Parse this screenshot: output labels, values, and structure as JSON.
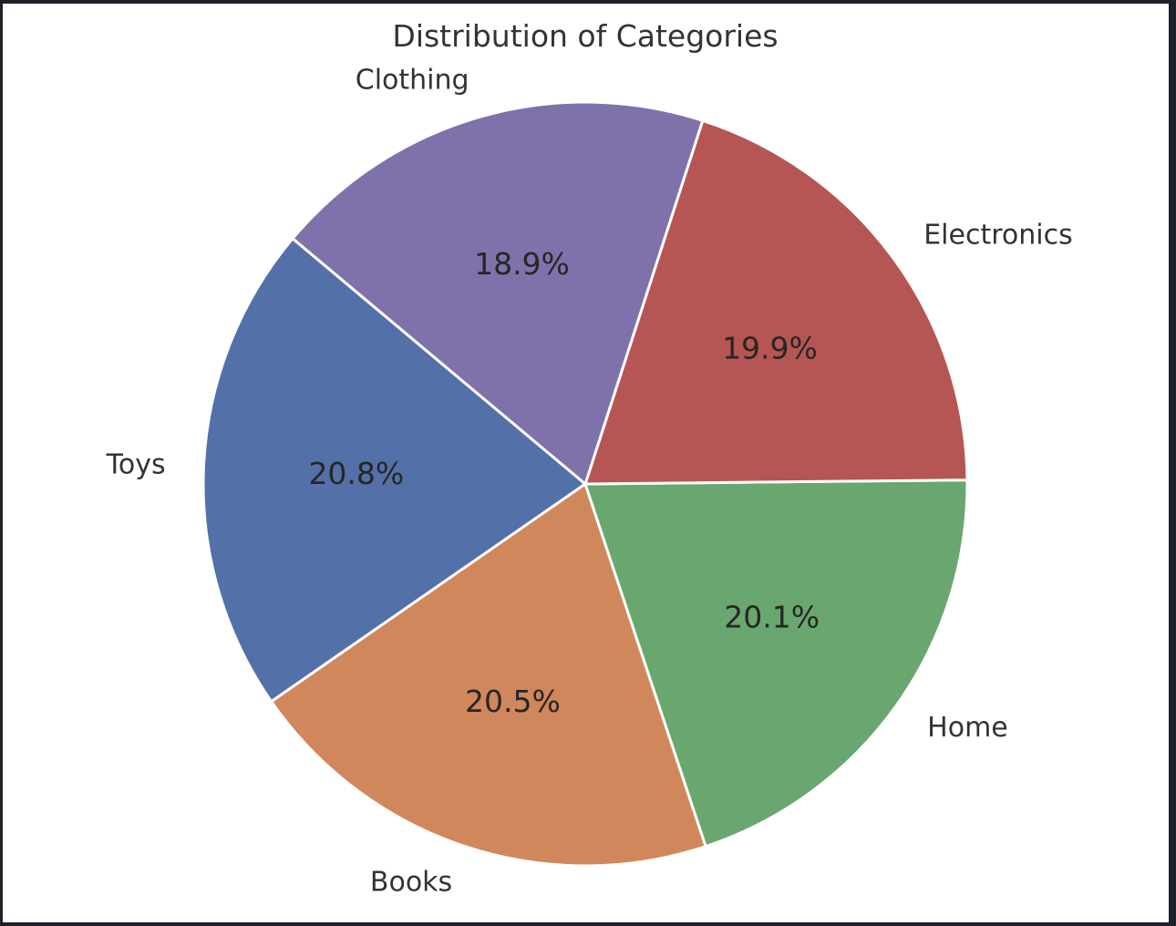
{
  "chart_data": {
    "type": "pie",
    "title": "Distribution of Categories",
    "start_angle_deg": 140,
    "direction": "counterclockwise",
    "slices": [
      {
        "label": "Toys",
        "percent": 20.8,
        "pct_label": "20.8%",
        "color": "#5470a9"
      },
      {
        "label": "Books",
        "percent": 20.5,
        "pct_label": "20.5%",
        "color": "#d1875c"
      },
      {
        "label": "Home",
        "percent": 20.1,
        "pct_label": "20.1%",
        "color": "#6aa66f"
      },
      {
        "label": "Electronics",
        "percent": 19.9,
        "pct_label": "19.9%",
        "color": "#b55654"
      },
      {
        "label": "Clothing",
        "percent": 18.9,
        "pct_label": "18.9%",
        "color": "#7f72ab"
      }
    ]
  }
}
